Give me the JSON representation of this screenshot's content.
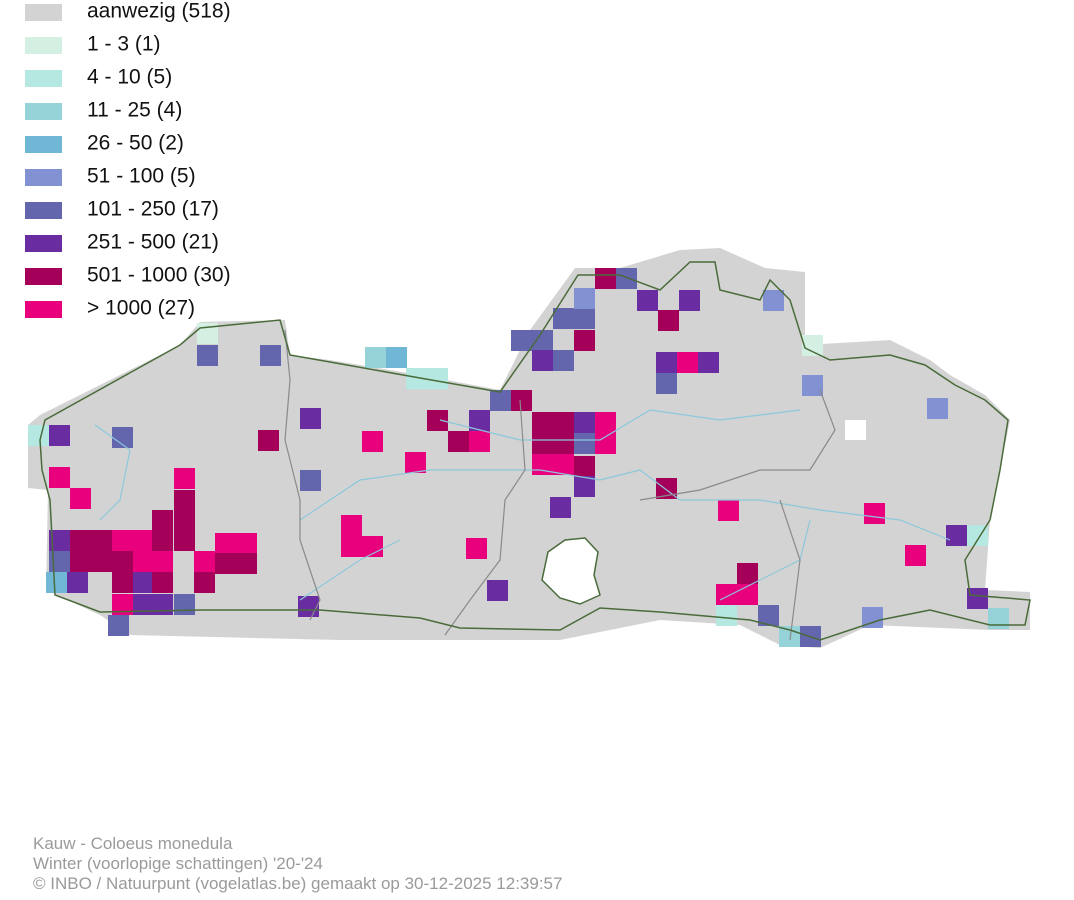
{
  "legend": [
    {
      "label": "aanwezig (518)",
      "color": "#d3d3d3"
    },
    {
      "label": "1 - 3 (1)",
      "color": "#d4f0e3"
    },
    {
      "label": "4 - 10 (5)",
      "color": "#b5e8e0"
    },
    {
      "label": "11 - 25 (4)",
      "color": "#96d3d8"
    },
    {
      "label": "26 - 50 (2)",
      "color": "#6fb7d5"
    },
    {
      "label": "51 - 100 (5)",
      "color": "#8291d2"
    },
    {
      "label": "101 - 250 (17)",
      "color": "#6466ad"
    },
    {
      "label": "251 - 500 (21)",
      "color": "#6a2da1"
    },
    {
      "label": "501 - 1000 (30)",
      "color": "#a4005a"
    },
    {
      "label": "> 1000 (27)",
      "color": "#e8007d"
    }
  ],
  "footer": [
    "Kauw - Coloeus monedula",
    "Winter (voorlopige schattingen) '20-'24",
    "© INBO / Natuurpunt (vogelatlas.be) gemaakt op 30-12-2025 12:39:57"
  ]
}
